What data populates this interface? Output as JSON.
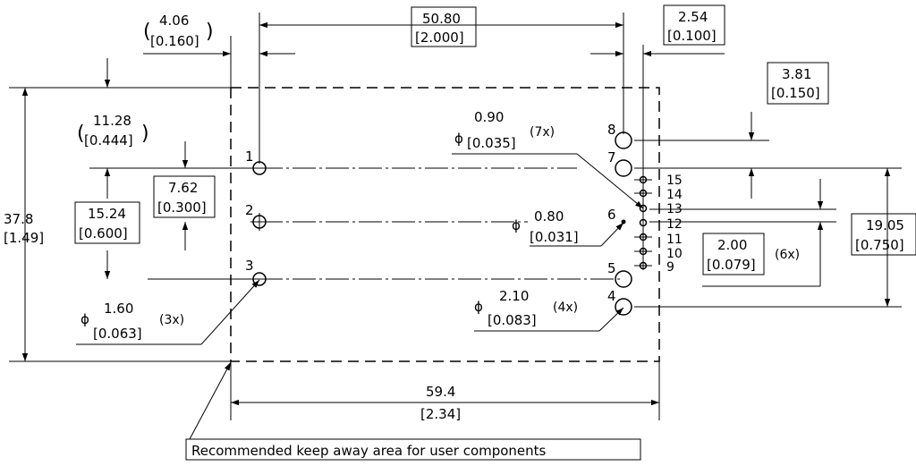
{
  "dimensions": {
    "left_offset": {
      "mm": "4.06",
      "in": "[0.160]"
    },
    "pitch_main": {
      "mm": "50.80",
      "in": "[2.000]"
    },
    "pitch_right": {
      "mm": "2.54",
      "in": "[0.100]"
    },
    "header_offset": {
      "mm": "3.81",
      "in": "[0.150]"
    },
    "top_offset": {
      "mm": "11.28",
      "in": "[0.444]"
    },
    "height": {
      "mm": "37.8",
      "in": "[1.49]"
    },
    "row_pitch": {
      "mm": "7.62",
      "in": "[0.300]"
    },
    "double_row": {
      "mm": "15.24",
      "in": "[0.600]"
    },
    "right_span": {
      "mm": "19.05",
      "in": "[0.750]"
    },
    "small_pitch": {
      "mm": "2.00",
      "in": "[0.079]",
      "qty": "(6x)"
    },
    "width": {
      "mm": "59.4",
      "in": "[2.34]"
    }
  },
  "holes": {
    "dia_090": {
      "symbol": "ϕ",
      "mm": "0.90",
      "in": "[0.035]",
      "qty": "(7x)"
    },
    "dia_080": {
      "symbol": "ϕ",
      "mm": "0.80",
      "in": "[0.031]"
    },
    "dia_160": {
      "symbol": "ϕ",
      "mm": "1.60",
      "in": "[0.063]",
      "qty": "(3x)"
    },
    "dia_210": {
      "symbol": "ϕ",
      "mm": "2.10",
      "in": "[0.083]",
      "qty": "(4x)"
    }
  },
  "pins": [
    "1",
    "2",
    "3",
    "4",
    "5",
    "6",
    "7",
    "8",
    "9",
    "10",
    "11",
    "12",
    "13",
    "14",
    "15"
  ],
  "note": "Recommended keep away area for user components"
}
